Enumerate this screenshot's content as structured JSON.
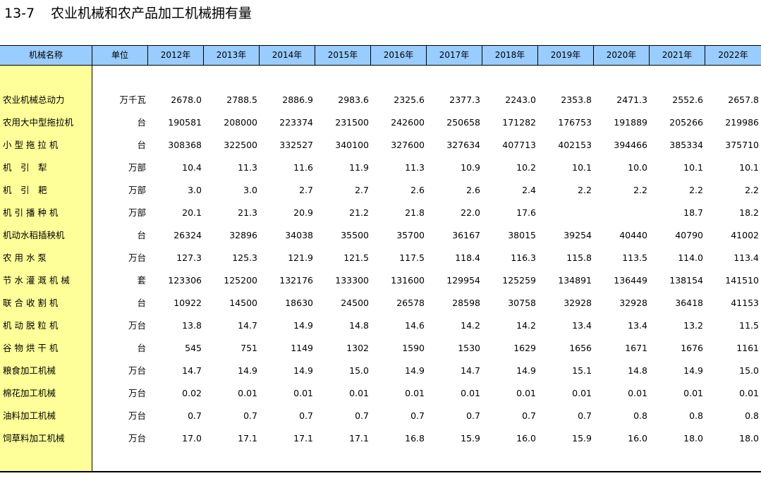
{
  "title": {
    "number": "13-7",
    "text": "农业机械和农产品加工机械拥有量"
  },
  "columns": [
    "机械名称",
    "单位",
    "2012年",
    "2013年",
    "2014年",
    "2015年",
    "2016年",
    "2017年",
    "2018年",
    "2019年",
    "2020年",
    "2021年",
    "2022年"
  ],
  "rows": [
    {
      "name": "农业机械总动力",
      "unit": "万千瓦",
      "values": [
        "2678.0",
        "2788.5",
        "2886.9",
        "2983.6",
        "2325.6",
        "2377.3",
        "2243.0",
        "2353.8",
        "2471.3",
        "2552.6",
        "2657.8"
      ]
    },
    {
      "name": "农用大中型拖拉机",
      "unit": "台",
      "values": [
        "190581",
        "208000",
        "223374",
        "231500",
        "242600",
        "250658",
        "171282",
        "176753",
        "191889",
        "205266",
        "219986"
      ]
    },
    {
      "name": "小 型 拖 拉 机",
      "unit": "台",
      "values": [
        "308368",
        "322500",
        "332527",
        "340100",
        "327600",
        "327634",
        "407713",
        "402153",
        "394466",
        "385334",
        "375710"
      ]
    },
    {
      "name": "机　引　犁",
      "unit": "万部",
      "values": [
        "10.4",
        "11.3",
        "11.6",
        "11.9",
        "11.3",
        "10.9",
        "10.2",
        "10.1",
        "10.0",
        "10.1",
        "10.1"
      ]
    },
    {
      "name": "机　引　耙",
      "unit": "万部",
      "values": [
        "3.0",
        "3.0",
        "2.7",
        "2.7",
        "2.6",
        "2.6",
        "2.4",
        "2.2",
        "2.2",
        "2.2",
        "2.2"
      ]
    },
    {
      "name": "机 引 播 种 机",
      "unit": "万部",
      "values": [
        "20.1",
        "21.3",
        "20.9",
        "21.2",
        "21.8",
        "22.0",
        "17.6",
        "",
        "",
        "18.7",
        "18.2"
      ]
    },
    {
      "name": "机动水稻插秧机",
      "unit": "台",
      "values": [
        "26324",
        "32896",
        "34038",
        "35500",
        "35700",
        "36167",
        "38015",
        "39254",
        "40440",
        "40790",
        "41002"
      ]
    },
    {
      "name": "农 用 水 泵",
      "unit": "万台",
      "values": [
        "127.3",
        "125.3",
        "121.9",
        "121.5",
        "117.5",
        "118.4",
        "116.3",
        "115.8",
        "113.5",
        "114.0",
        "113.4"
      ]
    },
    {
      "name": "节 水 灌 溉 机 械",
      "unit": "套",
      "values": [
        "123306",
        "125200",
        "132176",
        "133300",
        "131600",
        "129954",
        "125259",
        "134891",
        "136449",
        "138154",
        "141510"
      ]
    },
    {
      "name": "联 合 收 割 机",
      "unit": "台",
      "values": [
        "10922",
        "14500",
        "18630",
        "24500",
        "26578",
        "28598",
        "30758",
        "32928",
        "32928",
        "36418",
        "41153"
      ]
    },
    {
      "name": "机 动 脱 粒 机",
      "unit": "万台",
      "values": [
        "13.8",
        "14.7",
        "14.9",
        "14.8",
        "14.6",
        "14.2",
        "14.2",
        "13.4",
        "13.4",
        "13.2",
        "11.5"
      ]
    },
    {
      "name": "谷 物 烘 干 机",
      "unit": "台",
      "values": [
        "545",
        "751",
        "1149",
        "1302",
        "1590",
        "1530",
        "1629",
        "1656",
        "1671",
        "1676",
        "1161"
      ]
    },
    {
      "name": "粮食加工机械",
      "unit": "万台",
      "values": [
        "14.7",
        "14.9",
        "14.9",
        "15.0",
        "14.9",
        "14.7",
        "14.9",
        "15.1",
        "14.8",
        "14.9",
        "15.0"
      ]
    },
    {
      "name": "棉花加工机械",
      "unit": "万台",
      "values": [
        "0.02",
        "0.01",
        "0.01",
        "0.01",
        "0.01",
        "0.01",
        "0.01",
        "0.01",
        "0.01",
        "0.01",
        "0.01"
      ]
    },
    {
      "name": "油料加工机械",
      "unit": "万台",
      "values": [
        "0.7",
        "0.7",
        "0.7",
        "0.7",
        "0.7",
        "0.7",
        "0.7",
        "0.7",
        "0.8",
        "0.8",
        "0.8"
      ]
    },
    {
      "name": "饲草料加工机械",
      "unit": "万台",
      "values": [
        "17.0",
        "17.1",
        "17.1",
        "17.1",
        "16.8",
        "15.9",
        "16.0",
        "15.9",
        "16.0",
        "18.0",
        "18.0"
      ]
    }
  ]
}
